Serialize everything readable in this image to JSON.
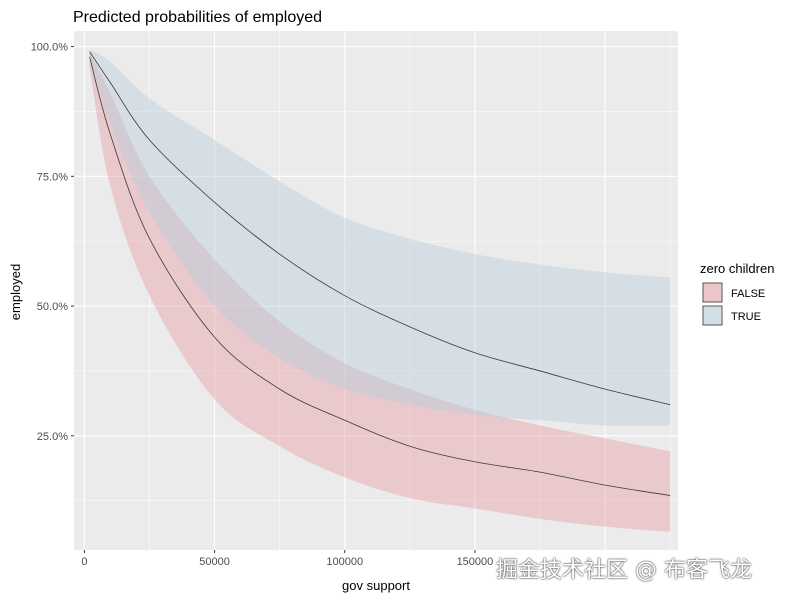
{
  "chart_data": {
    "type": "line",
    "title": "Predicted probabilities of employed",
    "xlabel": "gov support",
    "ylabel": "employed",
    "xlim": [
      -4000,
      228000
    ],
    "ylim": [
      0.03,
      1.03
    ],
    "x_ticks": [
      0,
      50000,
      100000,
      150000
    ],
    "x_tick_labels": [
      "0",
      "50000",
      "100000",
      "150000"
    ],
    "y_ticks": [
      0.25,
      0.5,
      0.75,
      1.0
    ],
    "y_tick_labels": [
      "25.0%",
      "50.0%",
      "75.0%",
      "100.0%"
    ],
    "grid": true,
    "legend": {
      "title": "zero children",
      "position": "right"
    },
    "x": [
      2000,
      10000,
      25000,
      50000,
      75000,
      100000,
      125000,
      150000,
      175000,
      200000,
      225000
    ],
    "series": [
      {
        "name": "FALSE",
        "color": "#e8a0a8",
        "values": [
          0.98,
          0.83,
          0.63,
          0.44,
          0.34,
          0.28,
          0.23,
          0.2,
          0.18,
          0.155,
          0.135
        ],
        "lower": [
          0.96,
          0.73,
          0.52,
          0.32,
          0.23,
          0.17,
          0.13,
          0.11,
          0.09,
          0.075,
          0.065
        ],
        "upper": [
          0.99,
          0.91,
          0.75,
          0.59,
          0.47,
          0.39,
          0.34,
          0.3,
          0.27,
          0.245,
          0.22
        ]
      },
      {
        "name": "TRUE",
        "color": "#b8cfdc",
        "values": [
          0.99,
          0.93,
          0.82,
          0.7,
          0.6,
          0.52,
          0.46,
          0.41,
          0.375,
          0.34,
          0.31
        ],
        "lower": [
          0.98,
          0.85,
          0.68,
          0.5,
          0.4,
          0.34,
          0.31,
          0.29,
          0.28,
          0.27,
          0.27
        ],
        "upper": [
          0.995,
          0.97,
          0.9,
          0.82,
          0.74,
          0.67,
          0.63,
          0.6,
          0.58,
          0.565,
          0.555
        ]
      }
    ]
  },
  "watermark": "掘金技术社区 @ 布客飞龙"
}
